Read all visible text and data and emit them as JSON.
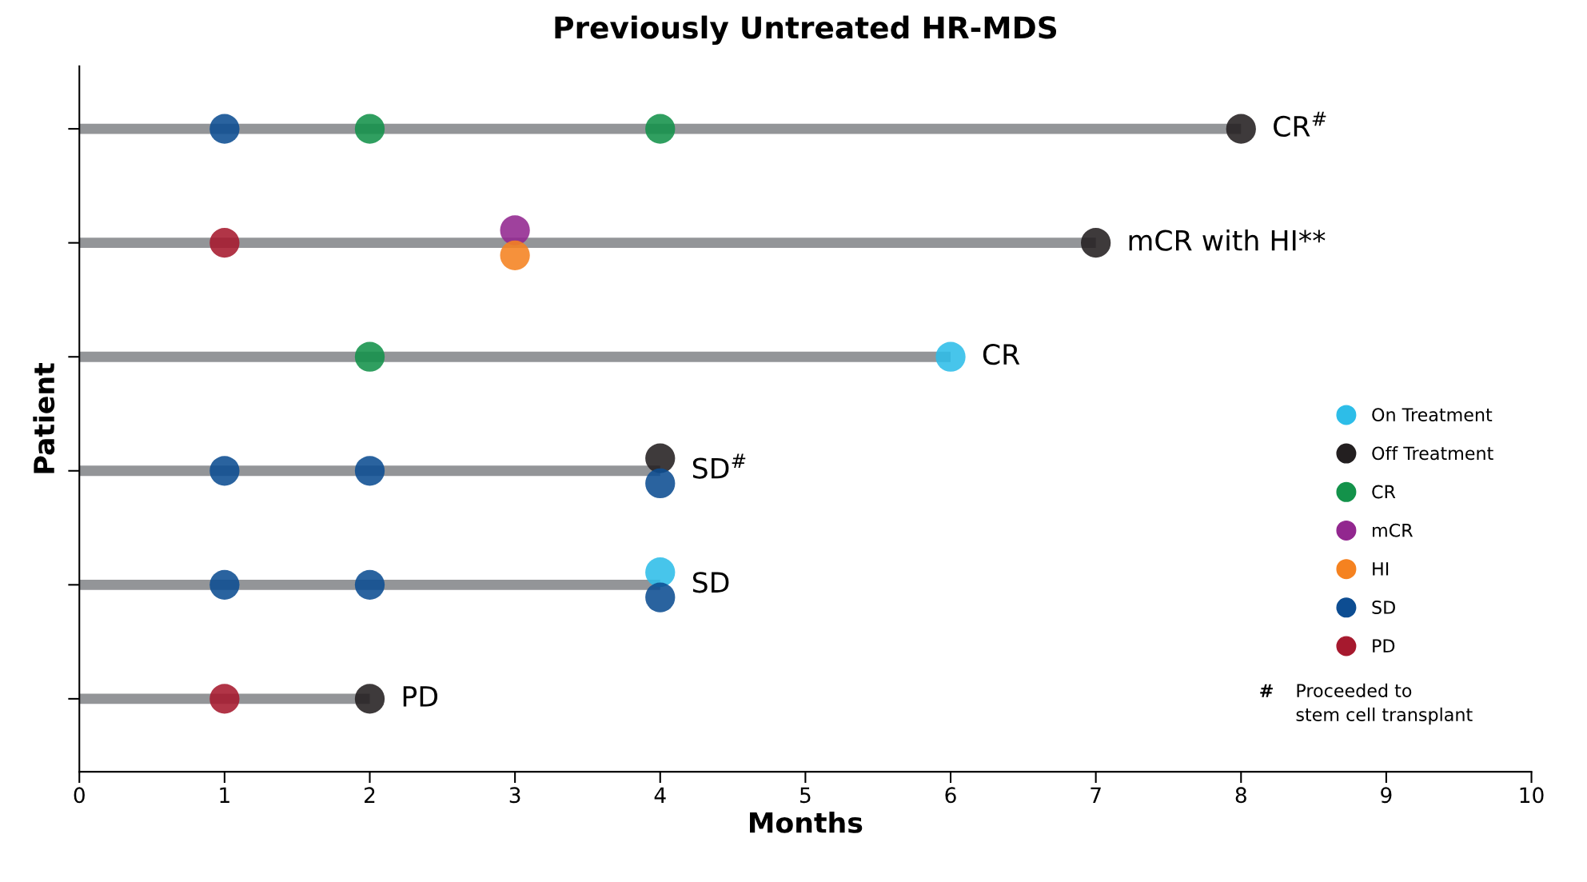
{
  "chart_data": {
    "type": "bar",
    "orientation": "horizontal",
    "title": "Previously Untreated HR-MDS",
    "xlabel": "Months",
    "ylabel": "Patient",
    "categories": [
      null,
      null,
      null,
      null,
      null,
      null
    ],
    "xlim": [
      0,
      10
    ],
    "xticks": [
      0,
      1,
      2,
      3,
      4,
      5,
      6,
      7,
      8,
      9,
      10
    ],
    "grid": false,
    "legend": "right",
    "marker": "circle",
    "series": [
      {
        "color": "#939598",
        "values": [
          8,
          7,
          6,
          4,
          4,
          2
        ],
        "value_labels": [
          "CR$^{#}$",
          "mCR with HI**",
          "CR",
          "SD$^{#}$",
          "SD",
          "PD"
        ]
      },
      {
        "type": "scatter",
        "name": "On Treatment",
        "color": "#2dbde8",
        "values": [
          null,
          null,
          6,
          null,
          4,
          null
        ]
      },
      {
        "type": "scatter",
        "name": "Off Treatment",
        "color": "#231f20",
        "values": [
          8,
          7,
          null,
          4,
          null,
          2
        ]
      },
      {
        "type": "scatter",
        "name": "CR",
        "color": "#13924a",
        "values": [
          2,
          null,
          2,
          null,
          null,
          null
        ]
      },
      {
        "type": "scatter",
        "color": "#13924a",
        "values": [
          4,
          null,
          null,
          null,
          null,
          null
        ]
      },
      {
        "type": "scatter",
        "name": "mCR",
        "color": "#92278f",
        "values": [
          null,
          3,
          null,
          null,
          null,
          null
        ]
      },
      {
        "type": "scatter",
        "name": "HI",
        "color": "#f58220",
        "values": [
          null,
          3,
          null,
          null,
          null,
          null
        ]
      },
      {
        "type": "scatter",
        "name": "SD",
        "color": "#0d4d92",
        "values": [
          1,
          null,
          null,
          1,
          1,
          null
        ]
      },
      {
        "type": "scatter",
        "color": "#0d4d92",
        "values": [
          null,
          null,
          null,
          2,
          2,
          null
        ]
      },
      {
        "type": "scatter",
        "color": "#0d4d92",
        "values": [
          null,
          null,
          null,
          4,
          4,
          null
        ]
      },
      {
        "type": "scatter",
        "name": "PD",
        "color": "#a6192e",
        "values": [
          null,
          1,
          null,
          null,
          null,
          1
        ]
      }
    ],
    "annotations": [
      "#",
      "Proceeded to\nstem cell transplant"
    ]
  }
}
